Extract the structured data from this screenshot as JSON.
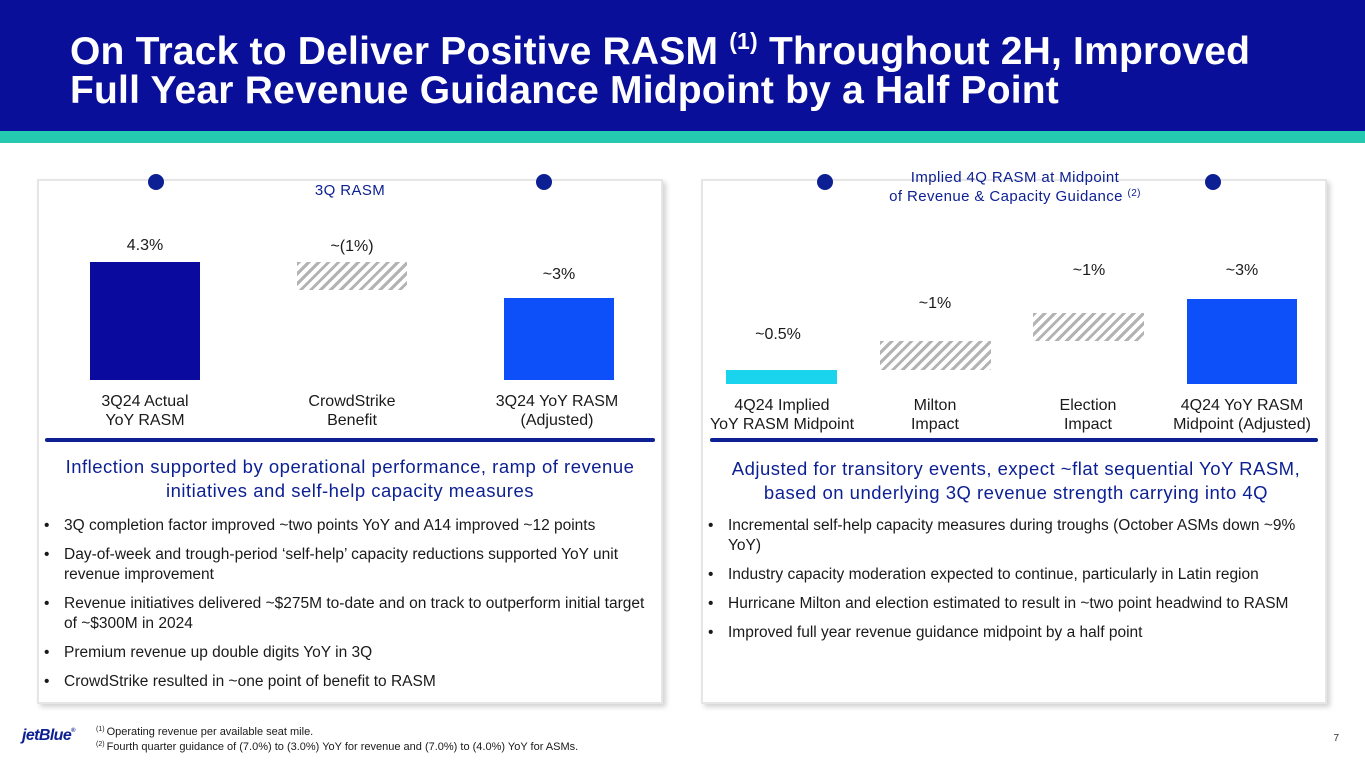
{
  "slide": {
    "title_part1": "On Track to Deliver Positive RASM",
    "title_sup": "(1)",
    "title_part2": "Throughout 2H, Improved Full Year Revenue Guidance Midpoint by a Half Point",
    "page_number": "7"
  },
  "colors": {
    "header_bg": "#0a0f9a",
    "header_stripe": "#25c9b0",
    "accent_navy": "#0c1f93",
    "bar_dark": "#0a0a9f",
    "bar_blue": "#0d4ff8",
    "bar_cyan": "#1ad3ec",
    "hatch_gray": "#b3b3b3"
  },
  "left_panel": {
    "title": "3Q RASM",
    "subhead": "Inflection supported by operational performance, ramp of revenue initiatives and self-help capacity measures",
    "bullets": [
      "3Q completion factor improved ~two points YoY and A14 improved ~12 points",
      "Day-of-week and trough-period ‘self-help’ capacity reductions supported YoY unit revenue improvement",
      "Revenue initiatives delivered ~$275M to-date and on track to outperform initial target of ~$300M in 2024",
      "Premium revenue up double digits YoY in 3Q",
      "CrowdStrike resulted in ~one point of benefit to RASM"
    ]
  },
  "right_panel": {
    "title_line1": "Implied 4Q RASM at Midpoint",
    "title_line2": "of Revenue & Capacity Guidance",
    "title_sup": "(2)",
    "subhead": "Adjusted for transitory events, expect ~flat sequential YoY RASM, based on underlying 3Q revenue strength carrying into 4Q",
    "bullets": [
      "Incremental self-help capacity measures during troughs (October ASMs down ~9% YoY)",
      "Industry capacity moderation expected to continue, particularly in Latin region",
      "Hurricane Milton and election estimated to result in ~two point headwind to RASM",
      "Improved full year revenue guidance midpoint by a half point"
    ]
  },
  "chart_data": [
    {
      "type": "waterfall",
      "title": "3Q RASM",
      "unit": "%",
      "categories": [
        "3Q24 Actual YoY RASM",
        "CrowdStrike Benefit",
        "3Q24 YoY RASM (Adjusted)"
      ],
      "category_lines": [
        [
          "3Q24 Actual",
          "YoY RASM"
        ],
        [
          "CrowdStrike",
          "Benefit"
        ],
        [
          "3Q24 YoY RASM",
          "(Adjusted)"
        ]
      ],
      "values": [
        4.3,
        -1,
        3
      ],
      "labels": [
        "4.3%",
        "~(1%)",
        "~3%"
      ],
      "kinds": [
        "total",
        "delta",
        "total"
      ]
    },
    {
      "type": "waterfall",
      "title": "Implied 4Q RASM at Midpoint of Revenue & Capacity Guidance",
      "unit": "%",
      "categories": [
        "4Q24 Implied YoY RASM Midpoint",
        "Milton Impact",
        "Election Impact",
        "4Q24 YoY RASM Midpoint (Adjusted)"
      ],
      "category_lines": [
        [
          "4Q24 Implied",
          "YoY RASM Midpoint"
        ],
        [
          "Milton",
          "Impact"
        ],
        [
          "Election",
          "Impact"
        ],
        [
          "4Q24 YoY RASM",
          "Midpoint (Adjusted)"
        ]
      ],
      "values": [
        0.5,
        1,
        1,
        3
      ],
      "labels": [
        "~0.5%",
        "~1%",
        "~1%",
        "~3%"
      ],
      "kinds": [
        "total",
        "delta",
        "delta",
        "total"
      ]
    }
  ],
  "footer": {
    "logo": "jetBlue",
    "logo_mark": "®",
    "footnote1_marker": "(1)",
    "footnote1": "Operating revenue per available seat mile.",
    "footnote2_marker": "(2)",
    "footnote2": "Fourth quarter guidance of (7.0%) to (3.0%) YoY for revenue and (7.0%) to (4.0%) YoY for ASMs."
  }
}
